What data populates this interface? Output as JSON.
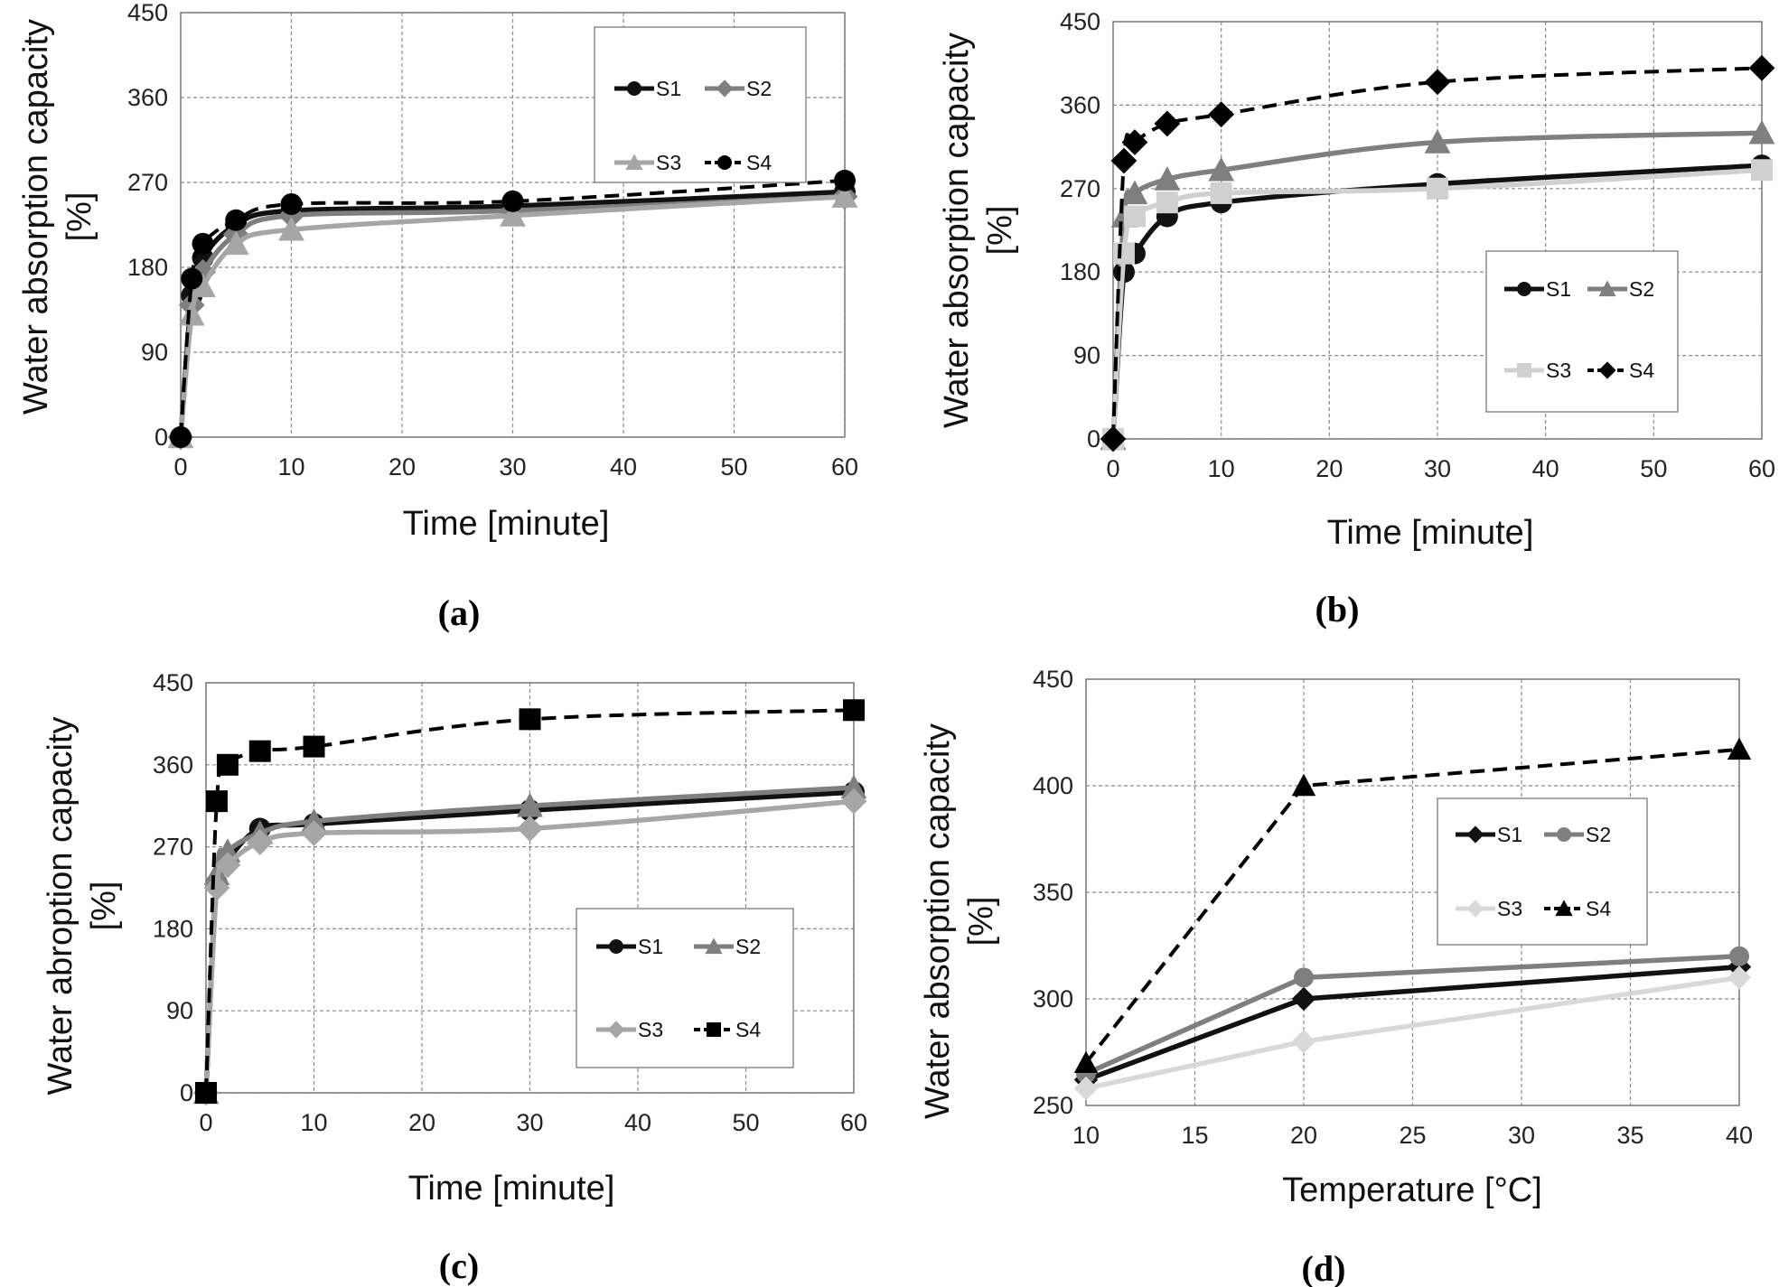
{
  "chart_data": [
    {
      "type": "line",
      "panel_label": "(a)",
      "xlabel": "Time [minute]",
      "ylabel_line1": "Water absorption capacity",
      "ylabel_line2": "[%]",
      "xlim": [
        0,
        60
      ],
      "ylim": [
        0,
        450
      ],
      "xticks": [
        0,
        10,
        20,
        30,
        40,
        50,
        60
      ],
      "yticks": [
        0,
        90,
        180,
        270,
        360,
        450
      ],
      "grid": true,
      "legend_position": "top-right",
      "series": [
        {
          "name": "S1",
          "color": "#111111",
          "dash": "solid",
          "marker": "circle",
          "x": [
            0,
            1,
            2,
            5,
            10,
            30,
            60
          ],
          "y": [
            0,
            150,
            190,
            225,
            240,
            245,
            260
          ]
        },
        {
          "name": "S2",
          "color": "#7f7f7f",
          "dash": "solid",
          "marker": "diamond",
          "x": [
            0,
            1,
            2,
            5,
            10,
            30,
            60
          ],
          "y": [
            0,
            140,
            175,
            215,
            235,
            240,
            255
          ]
        },
        {
          "name": "S3",
          "color": "#a6a6a6",
          "dash": "solid",
          "marker": "triangle",
          "x": [
            0,
            1,
            2,
            5,
            10,
            30,
            60
          ],
          "y": [
            0,
            130,
            160,
            205,
            220,
            235,
            255
          ]
        },
        {
          "name": "S4",
          "color": "#000000",
          "dash": "dashed",
          "marker": "circle",
          "x": [
            0,
            1,
            2,
            5,
            10,
            30,
            60
          ],
          "y": [
            0,
            168,
            205,
            230,
            247,
            250,
            272
          ]
        }
      ]
    },
    {
      "type": "line",
      "panel_label": "(b)",
      "xlabel": "Time [minute]",
      "ylabel_line1": "Water absorption capacity",
      "ylabel_line2": "[%]",
      "xlim": [
        0,
        60
      ],
      "ylim": [
        0,
        450
      ],
      "xticks": [
        0,
        10,
        20,
        30,
        40,
        50,
        60
      ],
      "yticks": [
        0,
        90,
        180,
        270,
        360,
        450
      ],
      "grid": true,
      "legend_position": "bottom-right",
      "series": [
        {
          "name": "S1",
          "color": "#111111",
          "dash": "solid",
          "marker": "circle",
          "x": [
            0,
            1,
            2,
            5,
            10,
            30,
            60
          ],
          "y": [
            0,
            180,
            200,
            240,
            255,
            275,
            295
          ]
        },
        {
          "name": "S2",
          "color": "#7f7f7f",
          "dash": "solid",
          "marker": "triangle",
          "x": [
            0,
            1,
            2,
            5,
            10,
            30,
            60
          ],
          "y": [
            0,
            240,
            265,
            280,
            290,
            320,
            330
          ]
        },
        {
          "name": "S3",
          "color": "#d0d0d0",
          "dash": "solid",
          "marker": "square",
          "x": [
            0,
            1,
            2,
            5,
            10,
            30,
            60
          ],
          "y": [
            0,
            200,
            240,
            255,
            265,
            270,
            290
          ]
        },
        {
          "name": "S4",
          "color": "#000000",
          "dash": "dashed",
          "marker": "diamond",
          "x": [
            0,
            1,
            2,
            5,
            10,
            30,
            60
          ],
          "y": [
            0,
            300,
            320,
            340,
            350,
            385,
            400
          ]
        }
      ]
    },
    {
      "type": "line",
      "panel_label": "(c)",
      "xlabel": "Time [minute]",
      "ylabel_line1": "Water abroption capacity",
      "ylabel_line2": "[%]",
      "xlim": [
        0,
        60
      ],
      "ylim": [
        0,
        450
      ],
      "xticks": [
        0,
        10,
        20,
        30,
        40,
        50,
        60
      ],
      "yticks": [
        0,
        90,
        180,
        270,
        360,
        450
      ],
      "grid": true,
      "legend_position": "bottom-right",
      "series": [
        {
          "name": "S1",
          "color": "#111111",
          "dash": "solid",
          "marker": "circle",
          "x": [
            0,
            1,
            2,
            5,
            10,
            30,
            60
          ],
          "y": [
            0,
            230,
            255,
            290,
            295,
            310,
            330
          ]
        },
        {
          "name": "S2",
          "color": "#7f7f7f",
          "dash": "solid",
          "marker": "triangle",
          "x": [
            0,
            1,
            2,
            5,
            10,
            30,
            60
          ],
          "y": [
            0,
            240,
            265,
            285,
            298,
            315,
            335
          ]
        },
        {
          "name": "S3",
          "color": "#a6a6a6",
          "dash": "solid",
          "marker": "diamond",
          "x": [
            0,
            1,
            2,
            5,
            10,
            30,
            60
          ],
          "y": [
            0,
            225,
            250,
            275,
            285,
            290,
            320
          ]
        },
        {
          "name": "S4",
          "color": "#000000",
          "dash": "dashed",
          "marker": "square",
          "x": [
            0,
            1,
            2,
            5,
            10,
            30,
            60
          ],
          "y": [
            0,
            320,
            360,
            375,
            380,
            410,
            420
          ]
        }
      ]
    },
    {
      "type": "line",
      "panel_label": "(d)",
      "xlabel": "Temperature [°C]",
      "ylabel_line1": "Water absorption capacity",
      "ylabel_line2": "[%]",
      "xlim": [
        10,
        40
      ],
      "ylim": [
        250,
        450
      ],
      "xticks": [
        10,
        15,
        20,
        25,
        30,
        35,
        40
      ],
      "yticks": [
        250,
        300,
        350,
        400,
        450
      ],
      "grid": true,
      "legend_position": "center",
      "series": [
        {
          "name": "S1",
          "color": "#111111",
          "dash": "solid",
          "marker": "diamond",
          "x": [
            10,
            20,
            40
          ],
          "y": [
            262,
            300,
            315
          ]
        },
        {
          "name": "S2",
          "color": "#7f7f7f",
          "dash": "solid",
          "marker": "circle",
          "x": [
            10,
            20,
            40
          ],
          "y": [
            265,
            310,
            320
          ]
        },
        {
          "name": "S3",
          "color": "#d9d9d9",
          "dash": "solid",
          "marker": "diamond",
          "x": [
            10,
            20,
            40
          ],
          "y": [
            258,
            280,
            310
          ]
        },
        {
          "name": "S4",
          "color": "#000000",
          "dash": "dashed",
          "marker": "triangle",
          "x": [
            10,
            20,
            40
          ],
          "y": [
            270,
            400,
            417
          ]
        }
      ]
    }
  ]
}
